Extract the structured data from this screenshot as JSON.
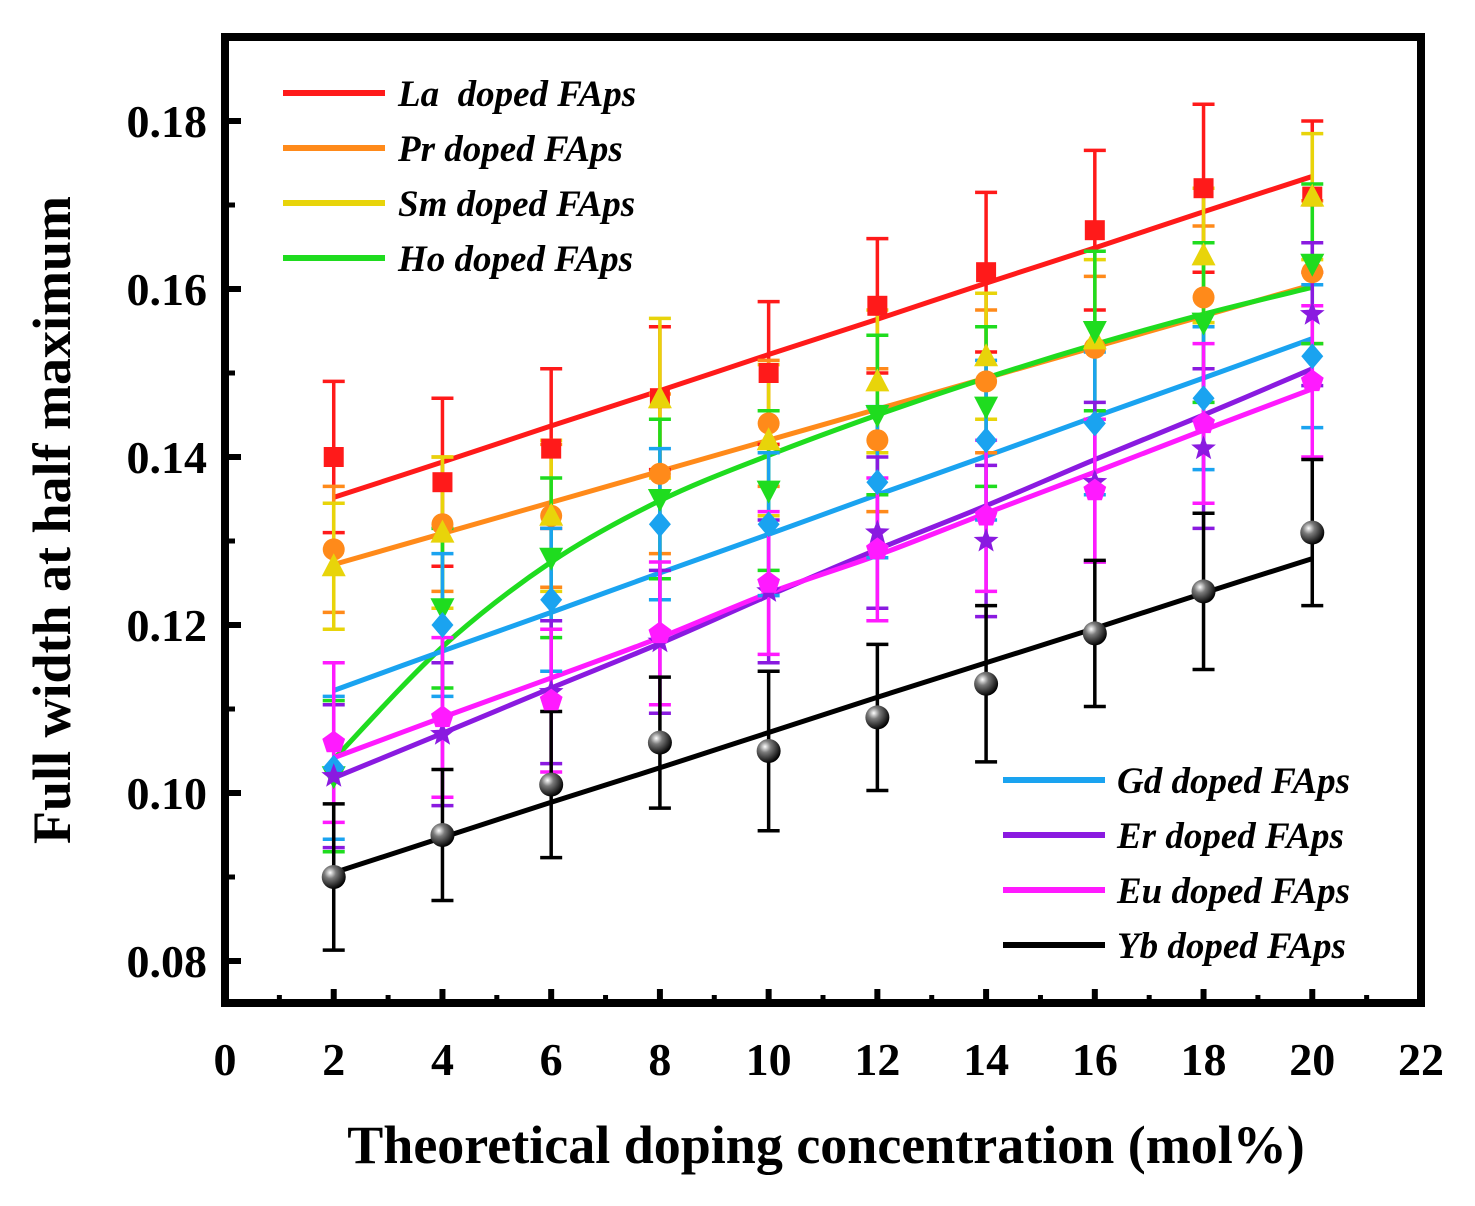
{
  "chart_data": {
    "type": "line",
    "title": "",
    "xlabel": "Theoretical doping concentration (mol%)",
    "ylabel": "Full width at half maximum",
    "xlim": [
      0,
      22
    ],
    "ylim": [
      0.075,
      0.19
    ],
    "xticks": [
      "0",
      "2",
      "4",
      "6",
      "8",
      "10",
      "12",
      "14",
      "16",
      "18",
      "20",
      "22"
    ],
    "yticks": [
      "0.08",
      "0.10",
      "0.12",
      "0.14",
      "0.16",
      "0.18"
    ],
    "grid": false,
    "legend_placement": [
      "top-left",
      "bottom-right"
    ],
    "x": [
      2,
      4,
      6,
      8,
      10,
      12,
      14,
      16,
      18,
      20
    ],
    "series": [
      {
        "name": "La  doped FAps",
        "color": "#ff1a1a",
        "marker": "square",
        "values": [
          0.14,
          0.137,
          0.141,
          0.147,
          0.15,
          0.158,
          0.162,
          0.167,
          0.172,
          0.171
        ],
        "errors": [
          0.009,
          0.01,
          0.0095,
          0.0085,
          0.0085,
          0.008,
          0.0095,
          0.0095,
          0.01,
          0.009
        ],
        "fit": [
          0.1352,
          0.1394,
          0.1437,
          0.1479,
          0.1522,
          0.1564,
          0.1607,
          0.1649,
          0.1692,
          0.1734
        ]
      },
      {
        "name": "Pr doped FAps",
        "color": "#ff8a1a",
        "marker": "circle",
        "values": [
          0.129,
          0.132,
          0.133,
          0.138,
          0.144,
          0.142,
          0.149,
          0.153,
          0.159,
          0.162
        ],
        "errors": [
          0.0075,
          0.008,
          0.0085,
          0.0095,
          0.0075,
          0.0085,
          0.0085,
          0.0085,
          0.0085,
          0.0085
        ],
        "fit": [
          0.1272,
          0.1309,
          0.1346,
          0.1383,
          0.142,
          0.1457,
          0.1494,
          0.1531,
          0.1568,
          0.1605
        ]
      },
      {
        "name": "Sm doped FAps",
        "color": "#e8d40a",
        "marker": "triangle-up",
        "values": [
          0.127,
          0.131,
          0.133,
          0.147,
          0.142,
          0.149,
          0.152,
          0.154,
          0.164,
          0.171
        ],
        "errors": [
          0.0075,
          0.009,
          0.009,
          0.0095,
          0.009,
          0.0085,
          0.0075,
          0.0095,
          0.008,
          0.0075
        ],
        "fit": []
      },
      {
        "name": "Ho doped FAps",
        "color": "#1fdc1f",
        "marker": "triangle-down",
        "values": [
          0.102,
          0.122,
          0.128,
          0.135,
          0.136,
          0.145,
          0.146,
          0.155,
          0.156,
          0.163
        ],
        "errors": [
          0.009,
          0.0095,
          0.0095,
          0.0095,
          0.0095,
          0.0095,
          0.0095,
          0.0095,
          0.0095,
          0.0095
        ],
        "fit": [
          0.104,
          0.1174,
          0.1275,
          0.1348,
          0.1402,
          0.145,
          0.1494,
          0.1534,
          0.157,
          0.1602
        ]
      },
      {
        "name": "Gd doped FAps",
        "color": "#1aa3f0",
        "marker": "diamond",
        "values": [
          0.103,
          0.12,
          0.123,
          0.132,
          0.132,
          0.137,
          0.142,
          0.144,
          0.147,
          0.152
        ],
        "errors": [
          0.0085,
          0.0085,
          0.0085,
          0.009,
          0.0085,
          0.009,
          0.0095,
          0.0085,
          0.0085,
          0.0085
        ],
        "fit": [
          0.1122,
          0.1169,
          0.1215,
          0.1262,
          0.1308,
          0.1355,
          0.1401,
          0.1448,
          0.1494,
          0.1541
        ]
      },
      {
        "name": "Er doped FAps",
        "color": "#8a1ae0",
        "marker": "star",
        "values": [
          0.102,
          0.107,
          0.112,
          0.118,
          0.124,
          0.131,
          0.13,
          0.137,
          0.141,
          0.157
        ],
        "errors": [
          0.0085,
          0.0085,
          0.0085,
          0.0085,
          0.0085,
          0.009,
          0.009,
          0.0095,
          0.0095,
          0.0085
        ],
        "fit": [
          0.1018,
          0.1071,
          0.1125,
          0.1178,
          0.1235,
          0.129,
          0.1342,
          0.1397,
          0.145,
          0.1505
        ]
      },
      {
        "name": "Eu doped FAps",
        "color": "#ff1aff",
        "marker": "pentagon",
        "values": [
          0.106,
          0.109,
          0.111,
          0.119,
          0.125,
          0.129,
          0.133,
          0.136,
          0.144,
          0.149
        ],
        "errors": [
          0.0095,
          0.0095,
          0.0085,
          0.0085,
          0.0085,
          0.0085,
          0.009,
          0.0085,
          0.0095,
          0.009
        ],
        "fit": [
          0.1042,
          0.109,
          0.1137,
          0.1185,
          0.1238,
          0.1283,
          0.1333,
          0.1382,
          0.1432,
          0.1481
        ]
      },
      {
        "name": "Yb doped FAps",
        "color": "#000000",
        "marker": "sphere",
        "values": [
          0.09,
          0.095,
          0.101,
          0.106,
          0.105,
          0.109,
          0.113,
          0.119,
          0.124,
          0.131
        ],
        "errors": [
          0.0087,
          0.0078,
          0.0087,
          0.0078,
          0.0095,
          0.0087,
          0.0093,
          0.0087,
          0.0093,
          0.0087
        ],
        "fit": [
          0.0905,
          0.0947,
          0.0989,
          0.103,
          0.1072,
          0.1114,
          0.1155,
          0.1196,
          0.1238,
          0.1279
        ]
      }
    ],
    "legends": [
      {
        "entries": [
          "La  doped FAps",
          "Pr doped FAps",
          "Sm doped FAps",
          "Ho doped FAps"
        ]
      },
      {
        "entries": [
          "Gd doped FAps",
          "Er doped FAps",
          "Eu doped FAps",
          "Yb doped FAps"
        ]
      }
    ]
  }
}
